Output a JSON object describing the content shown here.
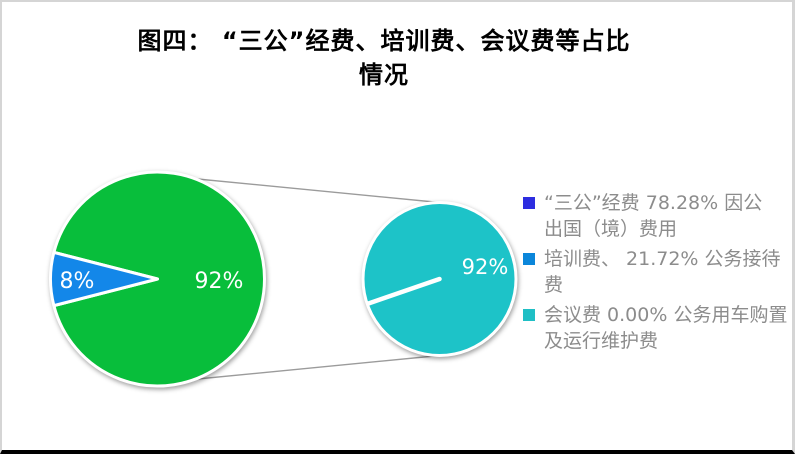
{
  "frame": {
    "border_color": "#d5d5d5",
    "bottom_border_color": "#000000",
    "background": "#ffffff"
  },
  "title": {
    "line1": "图四： “三公”经费、培训费、会议费等占比",
    "line2": "情况",
    "color": "#000000"
  },
  "chart_data": {
    "type": "pie",
    "subtype": "pie-of-pie",
    "title": "图四： “三公”经费、培训费、会议费等占比情况",
    "primary_pie": {
      "slices": [
        {
          "name": "majority",
          "value": 92,
          "label": "92%",
          "color": "#08BE3B"
        },
        {
          "name": "minority",
          "value": 8,
          "label": "8%",
          "color": "#1387E9"
        }
      ],
      "minority_slice_direction_deg": 180,
      "label_color": "#ffffff"
    },
    "secondary_pie": {
      "slices": [
        {
          "name": "secondary-total",
          "value": 100,
          "label": "92%",
          "color": "#1DC3C8"
        }
      ],
      "divider_angle_deg": 199,
      "label_color": "#ffffff"
    },
    "connector_color": "#9b9b9b",
    "slice_border_color": "#ffffff",
    "legend": {
      "position": "right",
      "text_color": "#8c8c8c",
      "items": [
        {
          "color": "#2D2DE0",
          "percent": "78.28%",
          "lines": [
            "“三公”经费 78.28% 因公",
            "出国（境）费用"
          ]
        },
        {
          "color": "#0B86DA",
          "percent": "21.72%",
          "lines": [
            "培训费、 21.72% 公务接待",
            "费"
          ]
        },
        {
          "color": "#1FBFC5",
          "percent": "0.00%",
          "lines": [
            "会议费 0.00% 公务用车购置",
            "及运行维护费"
          ]
        }
      ]
    }
  }
}
